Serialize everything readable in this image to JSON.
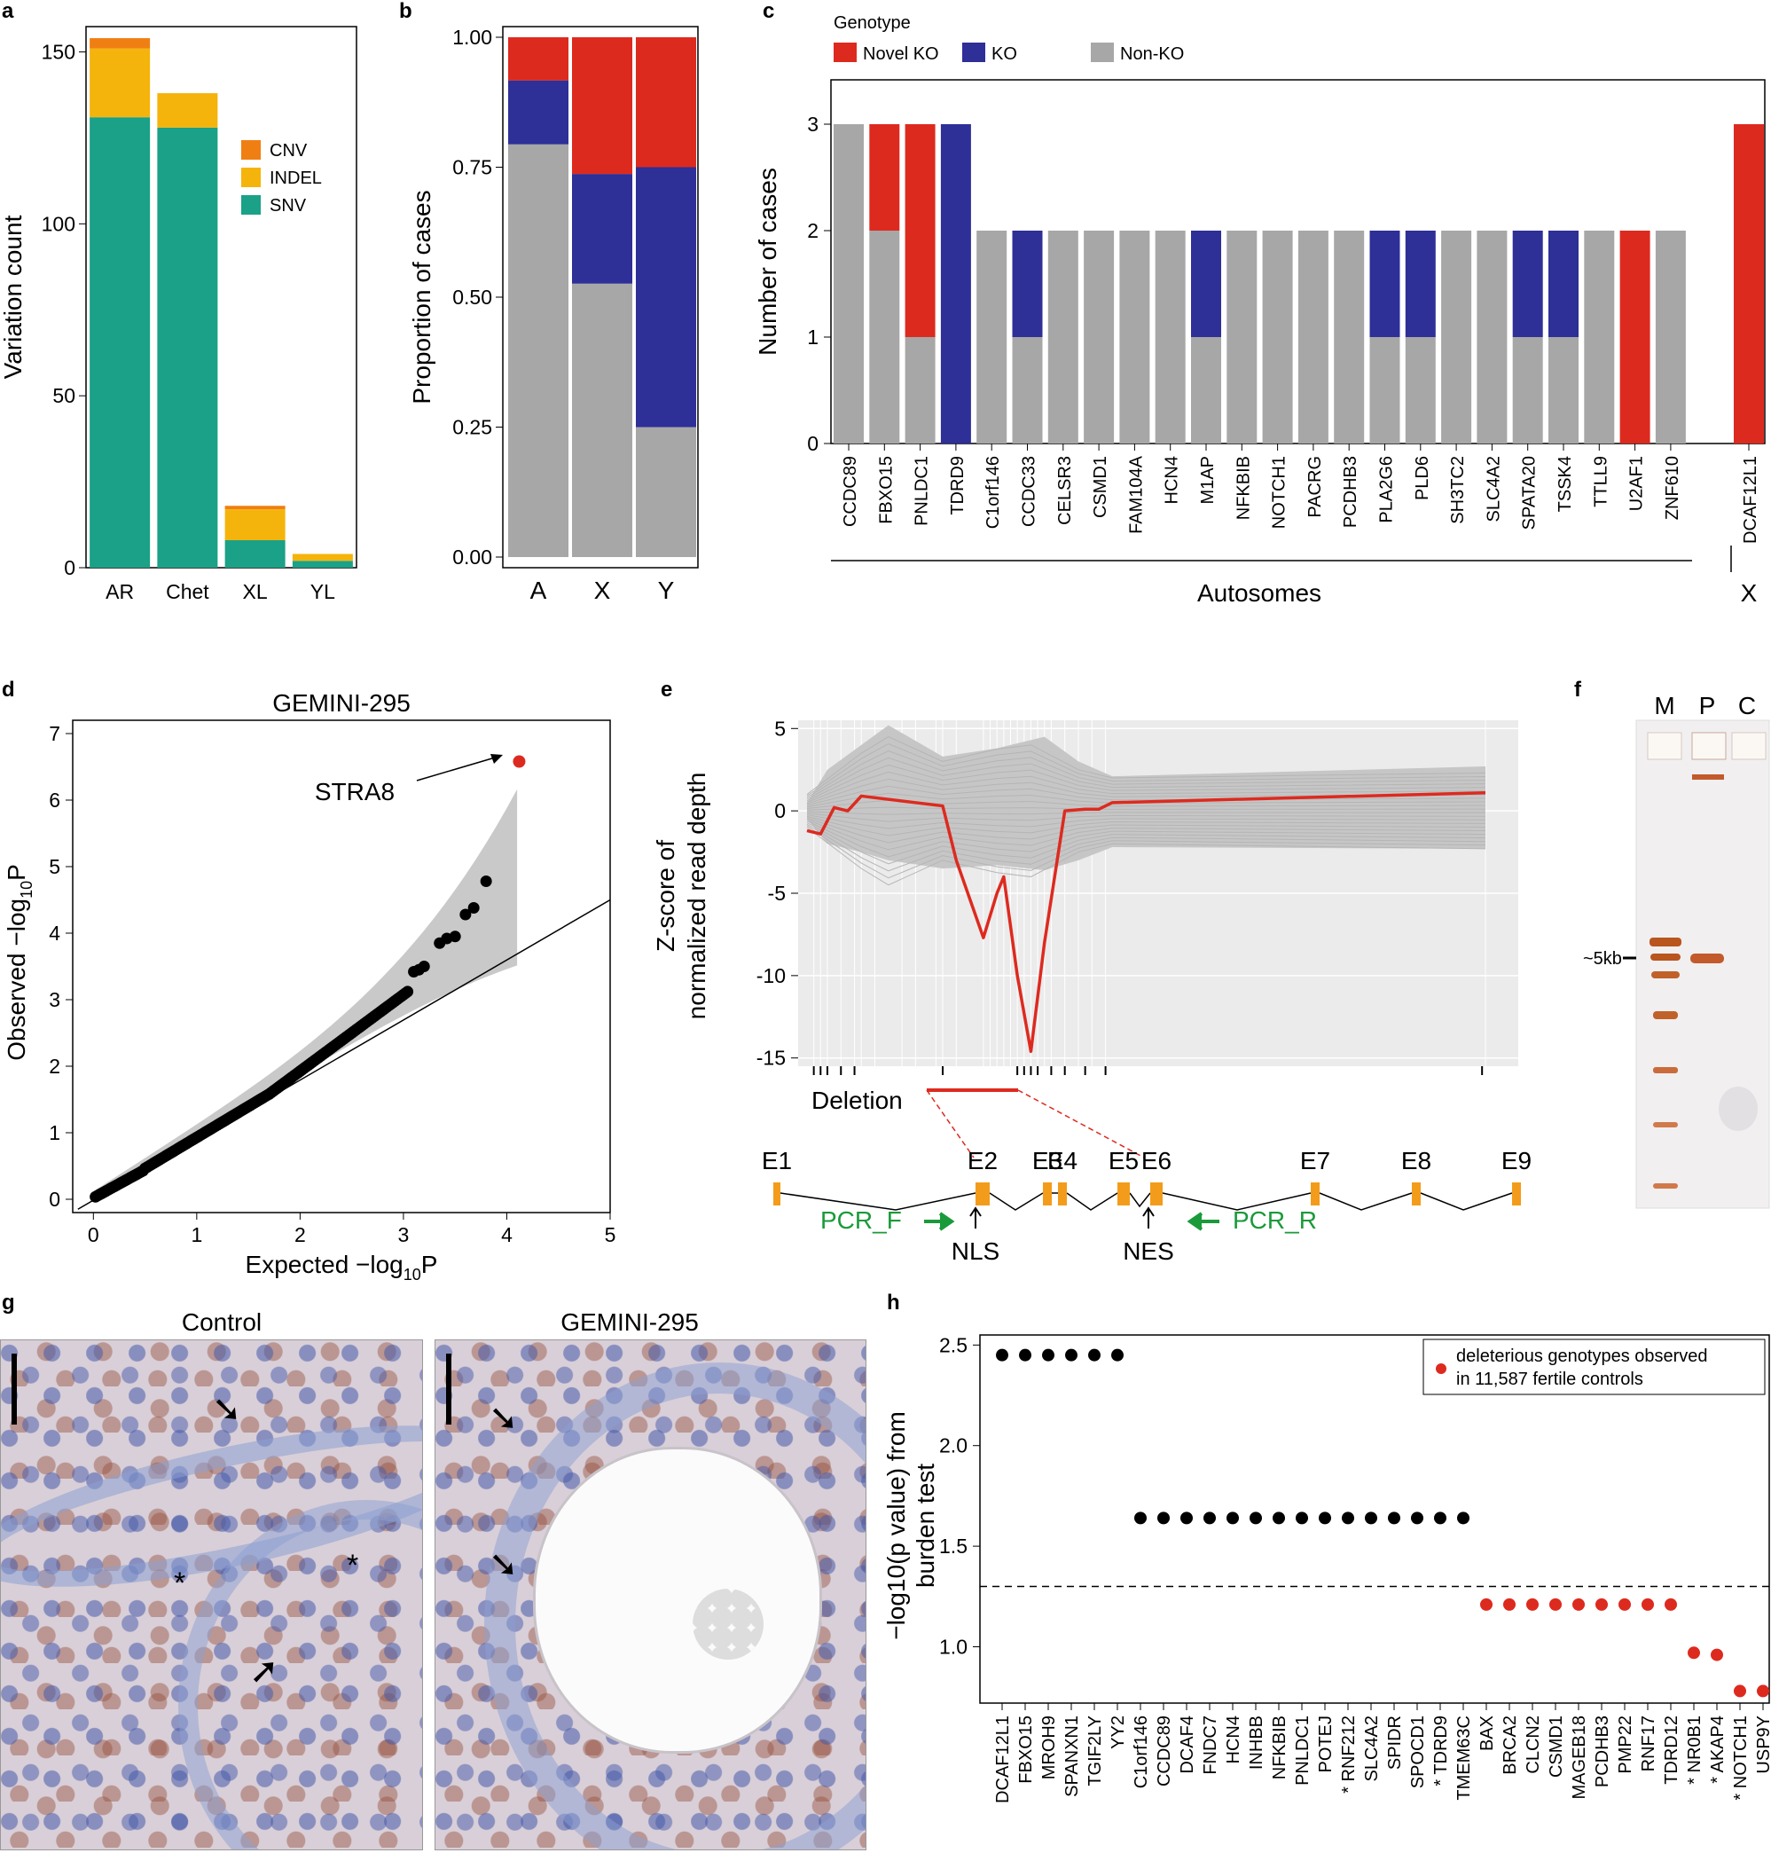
{
  "figure": {
    "panel_a": {
      "label": "a",
      "chart_data": {
        "type": "bar",
        "stacked": true,
        "categories": [
          "AR",
          "Chet",
          "XL",
          "YL"
        ],
        "series": [
          {
            "name": "SNV",
            "color": "#1aa187",
            "values": [
              131,
              128,
              8,
              2
            ]
          },
          {
            "name": "INDEL",
            "color": "#f5b40b",
            "values": [
              20,
              10,
              9,
              2
            ]
          },
          {
            "name": "CNV",
            "color": "#f07f13",
            "values": [
              3,
              0,
              1,
              0
            ]
          }
        ],
        "ylabel": "Variation count",
        "ylim": [
          0,
          155
        ],
        "yticks": [
          0,
          50,
          100,
          150
        ],
        "legend": "inside-right"
      }
    },
    "panel_b": {
      "label": "b",
      "chart_data": {
        "type": "bar",
        "stacked": true,
        "categories": [
          "A",
          "X",
          "Y"
        ],
        "series": [
          {
            "name": "Non-KO",
            "color": "#a7a7a7",
            "values": [
              0.794,
              0.526,
              0.25
            ]
          },
          {
            "name": "KO",
            "color": "#2e2f97",
            "values": [
              0.123,
              0.211,
              0.5
            ]
          },
          {
            "name": "Novel KO",
            "color": "#dd2a1f",
            "values": [
              0.083,
              0.263,
              0.25
            ]
          }
        ],
        "ylabel": "Proportion of cases",
        "ylim": [
          0,
          1
        ],
        "yticks": [
          "0.00",
          "0.25",
          "0.50",
          "0.75",
          "1.00"
        ]
      }
    },
    "panel_c": {
      "label": "c",
      "legend_title": "Genotype",
      "chart_data": {
        "type": "bar",
        "stacked": true,
        "groups": [
          {
            "name": "Autosomes",
            "categories": [
              "CCDC89",
              "FBXO15",
              "PNLDC1",
              "TDRD9",
              "C1orf146",
              "CCDC33",
              "CELSR3",
              "CSMD1",
              "FAM104A",
              "HCN4",
              "M1AP",
              "NFKBIB",
              "NOTCH1",
              "PACRG",
              "PCDHB3",
              "PLA2G6",
              "PLD6",
              "SH3TC2",
              "SLC4A2",
              "SPATA20",
              "TSSK4",
              "TTLL9",
              "U2AF1",
              "ZNF610"
            ]
          },
          {
            "name": "X",
            "categories": [
              "DCAF12L1"
            ]
          }
        ],
        "categories": [
          "CCDC89",
          "FBXO15",
          "PNLDC1",
          "TDRD9",
          "C1orf146",
          "CCDC33",
          "CELSR3",
          "CSMD1",
          "FAM104A",
          "HCN4",
          "M1AP",
          "NFKBIB",
          "NOTCH1",
          "PACRG",
          "PCDHB3",
          "PLA2G6",
          "PLD6",
          "SH3TC2",
          "SLC4A2",
          "SPATA20",
          "TSSK4",
          "TTLL9",
          "U2AF1",
          "ZNF610",
          "DCAF12L1"
        ],
        "series": [
          {
            "name": "Non-KO",
            "color": "#a7a7a7",
            "values": [
              3,
              2,
              1,
              0,
              2,
              1,
              2,
              2,
              2,
              2,
              1,
              2,
              2,
              2,
              2,
              1,
              1,
              2,
              2,
              1,
              1,
              2,
              0,
              2,
              0
            ]
          },
          {
            "name": "KO",
            "color": "#2e2f97",
            "values": [
              0,
              0,
              0,
              3,
              0,
              1,
              0,
              0,
              0,
              0,
              1,
              0,
              0,
              0,
              0,
              1,
              1,
              0,
              0,
              1,
              1,
              0,
              0,
              0,
              0
            ]
          },
          {
            "name": "Novel KO",
            "color": "#dd2a1f",
            "values": [
              0,
              1,
              2,
              0,
              0,
              0,
              0,
              0,
              0,
              0,
              0,
              0,
              0,
              0,
              0,
              0,
              0,
              0,
              0,
              0,
              0,
              0,
              2,
              0,
              3
            ]
          }
        ],
        "ylabel": "Number of cases",
        "ylim": [
          0,
          3.3
        ],
        "yticks": [
          0,
          1,
          2,
          3
        ]
      }
    },
    "panel_d": {
      "label": "d",
      "chart_data": {
        "type": "scatter",
        "title": "GEMINI-295",
        "xlabel": "Expected −log",
        "xlabel_sub": "10",
        "xlabel_end": "P",
        "ylabel": "Observed −log",
        "ylabel_sub": "10",
        "ylabel_end": "P",
        "xlim": [
          -0.2,
          5
        ],
        "ylim": [
          -0.2,
          7.2
        ],
        "xticks": [
          0,
          1,
          2,
          3,
          4,
          5
        ],
        "yticks": [
          0,
          1,
          2,
          3,
          4,
          5,
          6,
          7
        ],
        "highlight": {
          "label": "STRA8",
          "x": 4.12,
          "y": 6.58,
          "color": "#dd2a1f"
        },
        "top_points": [
          [
            3.8,
            4.78
          ],
          [
            3.68,
            4.38
          ],
          [
            3.6,
            4.28
          ],
          [
            3.5,
            3.95
          ],
          [
            3.42,
            3.92
          ],
          [
            3.35,
            3.85
          ],
          [
            3.2,
            3.5
          ],
          [
            3.15,
            3.45
          ],
          [
            3.1,
            3.42
          ]
        ]
      }
    },
    "panel_e": {
      "label": "e",
      "chart_data": {
        "type": "line",
        "ylabel_line1": "Z-score of",
        "ylabel_line2": "normalized read depth",
        "ylim": [
          -15.5,
          5.5
        ],
        "yticks": [
          5,
          0,
          -5,
          -10,
          -15
        ],
        "highlight_series": [
          [
            0,
            -1.2
          ],
          [
            0.02,
            -1.4
          ],
          [
            0.04,
            0.2
          ],
          [
            0.06,
            0
          ],
          [
            0.08,
            0.9
          ],
          [
            0.2,
            0.3
          ],
          [
            0.22,
            -3
          ],
          [
            0.26,
            -7.7
          ],
          [
            0.28,
            -5
          ],
          [
            0.29,
            -4
          ],
          [
            0.31,
            -10
          ],
          [
            0.33,
            -14.6
          ],
          [
            0.35,
            -8
          ],
          [
            0.38,
            0
          ],
          [
            0.41,
            0.1
          ],
          [
            0.43,
            0.1
          ],
          [
            0.45,
            0.5
          ],
          [
            1,
            1.1
          ]
        ]
      },
      "deletion_label": "Deletion",
      "exons": [
        "E1",
        "E2",
        "E3",
        "E4",
        "E5",
        "E6",
        "E7",
        "E8",
        "E9"
      ],
      "primer_f": "PCR_F",
      "primer_r": "PCR_R",
      "nls": "NLS",
      "nes": "NES"
    },
    "panel_f": {
      "label": "f",
      "lanes": [
        "M",
        "P",
        "C"
      ],
      "size_label": "~5kb"
    },
    "panel_g": {
      "label": "g",
      "left_title": "Control",
      "right_title": "GEMINI-295"
    },
    "panel_h": {
      "label": "h",
      "chart_data": {
        "type": "scatter",
        "ylabel_line1": "−log10(p value) from",
        "ylabel_line2": "burden test",
        "ylim": [
          0.72,
          2.55
        ],
        "yticks": [
          "1.0",
          "1.5",
          "2.0",
          "2.5"
        ],
        "threshold": 1.3,
        "legend": "deleterious genotypes observed in 11,587 fertile controls",
        "legend_line1": "deleterious genotypes observed",
        "legend_line2": "in 11,587 fertile controls",
        "genes": [
          {
            "name": "DCAF12L1",
            "y": 2.45,
            "red": false
          },
          {
            "name": "FBXO15",
            "y": 2.45,
            "red": false
          },
          {
            "name": "MROH9",
            "y": 2.45,
            "red": false
          },
          {
            "name": "SPANXN1",
            "y": 2.45,
            "red": false
          },
          {
            "name": "TGIF2LY",
            "y": 2.45,
            "red": false
          },
          {
            "name": "YY2",
            "y": 2.45,
            "red": false
          },
          {
            "name": "C1orf146",
            "y": 1.64,
            "red": false
          },
          {
            "name": "CCDC89",
            "y": 1.64,
            "red": false
          },
          {
            "name": "DCAF4",
            "y": 1.64,
            "red": false
          },
          {
            "name": "FNDC7",
            "y": 1.64,
            "red": false
          },
          {
            "name": "HCN4",
            "y": 1.64,
            "red": false
          },
          {
            "name": "INHBB",
            "y": 1.64,
            "red": false
          },
          {
            "name": "NFKBIB",
            "y": 1.64,
            "red": false
          },
          {
            "name": "PNLDC1",
            "y": 1.64,
            "red": false
          },
          {
            "name": "POTEJ",
            "y": 1.64,
            "red": false
          },
          {
            "name": "* RNF212",
            "y": 1.64,
            "red": false
          },
          {
            "name": "SLC4A2",
            "y": 1.64,
            "red": false
          },
          {
            "name": "SPIDR",
            "y": 1.64,
            "red": false
          },
          {
            "name": "SPOCD1",
            "y": 1.64,
            "red": false
          },
          {
            "name": "* TDRD9",
            "y": 1.64,
            "red": false
          },
          {
            "name": "TMEM63C",
            "y": 1.64,
            "red": false
          },
          {
            "name": "BAX",
            "y": 1.21,
            "red": true
          },
          {
            "name": "BRCA2",
            "y": 1.21,
            "red": true
          },
          {
            "name": "CLCN2",
            "y": 1.21,
            "red": true
          },
          {
            "name": "CSMD1",
            "y": 1.21,
            "red": true
          },
          {
            "name": "MAGEB18",
            "y": 1.21,
            "red": true
          },
          {
            "name": "PCDHB3",
            "y": 1.21,
            "red": true
          },
          {
            "name": "PMP22",
            "y": 1.21,
            "red": true
          },
          {
            "name": "RNF17",
            "y": 1.21,
            "red": true
          },
          {
            "name": "TDRD12",
            "y": 1.21,
            "red": true
          },
          {
            "name": "* NR0B1",
            "y": 0.97,
            "red": true
          },
          {
            "name": "* AKAP4",
            "y": 0.96,
            "red": true
          },
          {
            "name": "* NOTCH1",
            "y": 0.78,
            "red": true
          },
          {
            "name": "USP9Y",
            "y": 0.78,
            "red": true
          }
        ]
      }
    }
  }
}
